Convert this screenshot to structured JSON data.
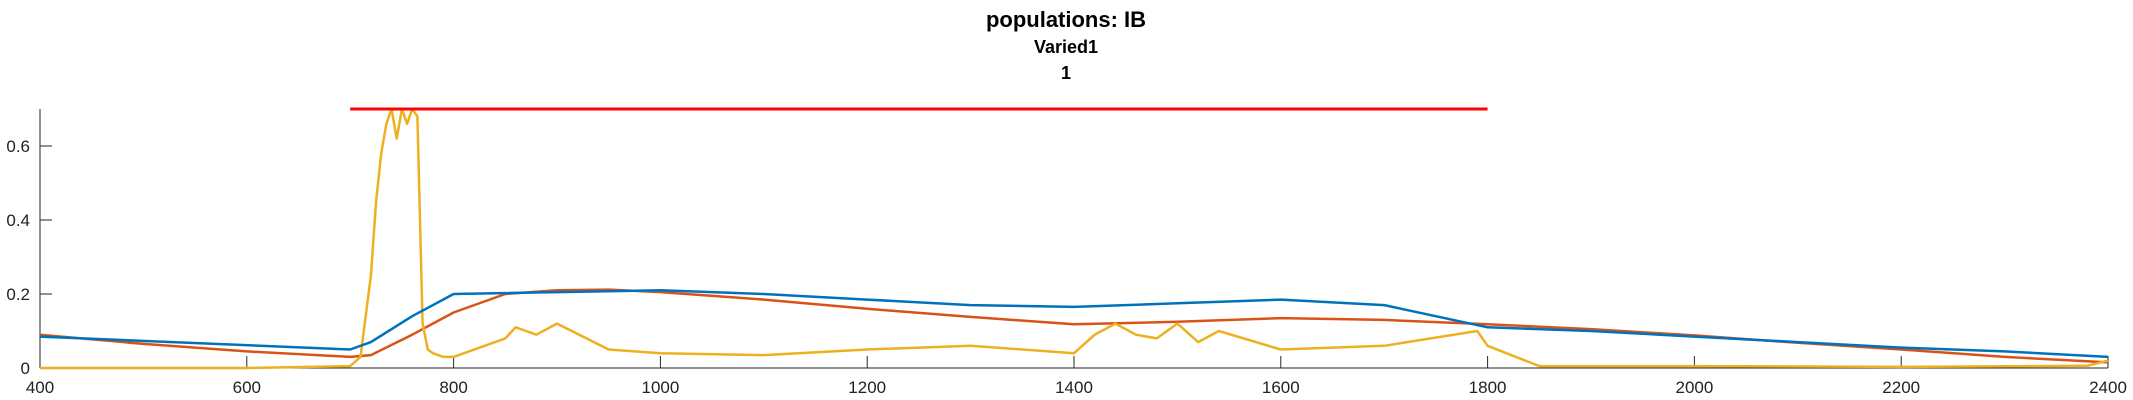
{
  "chart_data": {
    "type": "line",
    "title": "populations: IB",
    "subtitles": [
      "Varied1",
      "1"
    ],
    "xlabel": "",
    "ylabel": "",
    "xlim": [
      400,
      2400
    ],
    "ylim": [
      0,
      0.7
    ],
    "xticks": [
      400,
      600,
      800,
      1000,
      1200,
      1400,
      1600,
      1800,
      2000,
      2200,
      2400
    ],
    "yticks": [
      0,
      0.2,
      0.4,
      0.6
    ],
    "ytick_labels": [
      "0",
      "0.2",
      "0.4",
      "0.6"
    ],
    "grid": false,
    "legend": "none",
    "series": [
      {
        "color": "#d95319",
        "x": [
          400,
          500,
          600,
          700,
          720,
          760,
          800,
          850,
          900,
          950,
          1000,
          1100,
          1200,
          1300,
          1400,
          1500,
          1600,
          1700,
          1800,
          1900,
          2000,
          2100,
          2200,
          2300,
          2400
        ],
        "y": [
          0.09,
          0.065,
          0.045,
          0.03,
          0.035,
          0.09,
          0.15,
          0.2,
          0.21,
          0.212,
          0.205,
          0.185,
          0.16,
          0.138,
          0.118,
          0.125,
          0.135,
          0.13,
          0.118,
          0.105,
          0.088,
          0.068,
          0.05,
          0.03,
          0.015
        ]
      },
      {
        "color": "#edb120",
        "x": [
          400,
          600,
          700,
          710,
          720,
          725,
          730,
          735,
          740,
          745,
          750,
          755,
          760,
          765,
          770,
          775,
          780,
          790,
          800,
          850,
          860,
          870,
          880,
          900,
          950,
          1000,
          1100,
          1200,
          1300,
          1400,
          1420,
          1440,
          1460,
          1480,
          1500,
          1520,
          1540,
          1600,
          1700,
          1790,
          1800,
          1850,
          2000,
          2200,
          2380,
          2400
        ],
        "y": [
          0,
          0,
          0.005,
          0.03,
          0.25,
          0.45,
          0.58,
          0.66,
          0.7,
          0.62,
          0.7,
          0.66,
          0.7,
          0.68,
          0.12,
          0.05,
          0.04,
          0.03,
          0.03,
          0.08,
          0.11,
          0.1,
          0.09,
          0.12,
          0.05,
          0.04,
          0.035,
          0.05,
          0.06,
          0.04,
          0.09,
          0.12,
          0.09,
          0.08,
          0.12,
          0.07,
          0.1,
          0.05,
          0.06,
          0.1,
          0.06,
          0.005,
          0.005,
          0.003,
          0.006,
          0.02
        ]
      },
      {
        "color": "#0072bd",
        "x": [
          400,
          700,
          720,
          760,
          800,
          1000,
          1100,
          1200,
          1300,
          1400,
          1500,
          1600,
          1700,
          1800,
          1900,
          2000,
          2100,
          2200,
          2300,
          2400
        ],
        "y": [
          0.085,
          0.05,
          0.07,
          0.14,
          0.2,
          0.21,
          0.2,
          0.185,
          0.17,
          0.165,
          0.175,
          0.185,
          0.17,
          0.11,
          0.1,
          0.085,
          0.07,
          0.055,
          0.045,
          0.03
        ]
      },
      {
        "color": "#ff0000",
        "x": [
          700,
          1800
        ],
        "y": [
          0.7,
          0.7
        ]
      }
    ]
  }
}
